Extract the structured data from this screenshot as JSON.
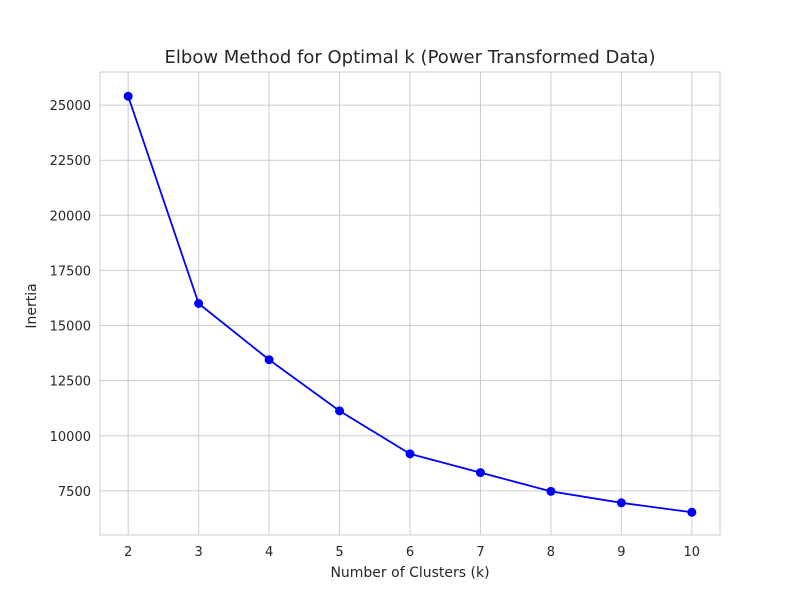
{
  "chart_data": {
    "type": "line",
    "title": "Elbow Method for Optimal k (Power Transformed Data)",
    "xlabel": "Number of Clusters (k)",
    "ylabel": "Inertia",
    "x": [
      2,
      3,
      4,
      5,
      6,
      7,
      8,
      9,
      10
    ],
    "xlim": [
      1.6,
      10.4
    ],
    "ylim": [
      5500,
      26500
    ],
    "x_ticks": [
      2,
      3,
      4,
      5,
      6,
      7,
      8,
      9,
      10
    ],
    "y_ticks": [
      7500,
      10000,
      12500,
      15000,
      17500,
      20000,
      22500,
      25000
    ],
    "grid": true,
    "series": [
      {
        "values": [
          25400,
          16000,
          13450,
          11130,
          9180,
          8330,
          7480,
          6960,
          6530
        ],
        "color": "#0000ff",
        "marker": "circle"
      }
    ]
  }
}
